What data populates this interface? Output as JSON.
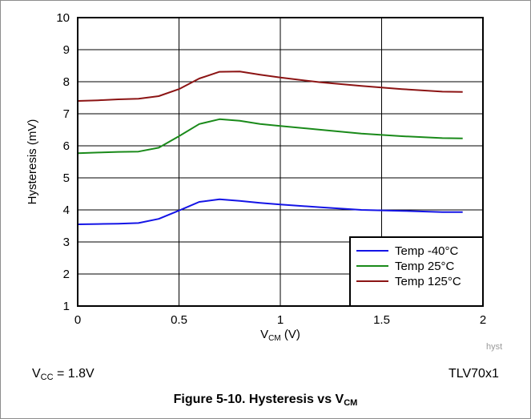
{
  "chart_data": {
    "type": "line",
    "xlabel_main": "V",
    "xlabel_sub": "CM",
    "xlabel_unit": " (V)",
    "ylabel": "Hysteresis (mV)",
    "xlim": [
      0,
      2
    ],
    "ylim": [
      1,
      10
    ],
    "x_ticks": [
      "0",
      "0.5",
      "1",
      "1.5",
      "2"
    ],
    "y_ticks": [
      "1",
      "2",
      "3",
      "4",
      "5",
      "6",
      "7",
      "8",
      "9",
      "10"
    ],
    "grid": true,
    "legend_position": "bottom-right",
    "series": [
      {
        "name": "Temp -40°C",
        "color": "#1414e6",
        "x": [
          0,
          0.1,
          0.2,
          0.3,
          0.4,
          0.5,
          0.6,
          0.7,
          0.8,
          0.9,
          1.0,
          1.2,
          1.4,
          1.6,
          1.8,
          1.9
        ],
        "y": [
          3.55,
          3.56,
          3.57,
          3.59,
          3.72,
          3.98,
          4.25,
          4.33,
          4.28,
          4.22,
          4.17,
          4.08,
          4.0,
          3.97,
          3.93,
          3.93
        ]
      },
      {
        "name": "Temp 25°C",
        "color": "#1a8a1a",
        "x": [
          0,
          0.1,
          0.2,
          0.3,
          0.4,
          0.5,
          0.6,
          0.7,
          0.8,
          0.9,
          1.0,
          1.2,
          1.4,
          1.6,
          1.8,
          1.9
        ],
        "y": [
          5.77,
          5.79,
          5.81,
          5.82,
          5.94,
          6.3,
          6.68,
          6.83,
          6.78,
          6.68,
          6.62,
          6.5,
          6.38,
          6.3,
          6.24,
          6.23
        ]
      },
      {
        "name": "Temp 125°C",
        "color": "#8c1414",
        "x": [
          0,
          0.1,
          0.2,
          0.3,
          0.4,
          0.5,
          0.6,
          0.7,
          0.8,
          0.9,
          1.0,
          1.2,
          1.4,
          1.6,
          1.8,
          1.9
        ],
        "y": [
          7.4,
          7.42,
          7.45,
          7.47,
          7.55,
          7.77,
          8.1,
          8.31,
          8.32,
          8.22,
          8.13,
          7.98,
          7.87,
          7.77,
          7.69,
          7.68
        ]
      }
    ]
  },
  "notes": {
    "vcc_main": "V",
    "vcc_sub": "CC",
    "vcc_rest": " = 1.8V",
    "part": "TLV70x1",
    "tag": "hyst"
  },
  "caption": {
    "main": "Figure 5-10. Hysteresis vs V",
    "sub": "CM"
  }
}
